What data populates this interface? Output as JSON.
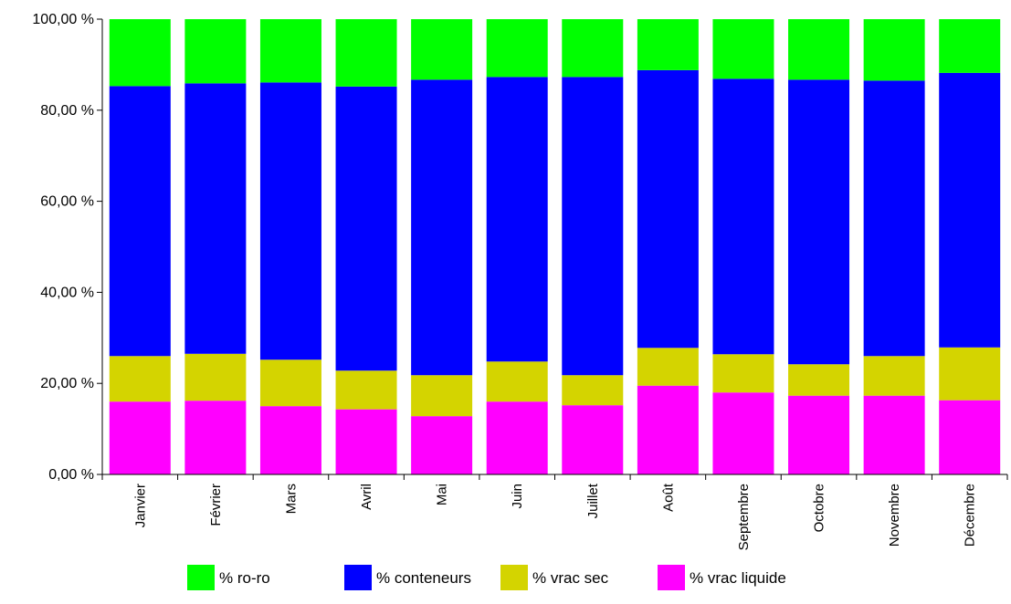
{
  "chart_data": {
    "type": "bar",
    "stacked": true,
    "categories": [
      "Janvier",
      "Février",
      "Mars",
      "Avril",
      "Mai",
      "Juin",
      "Juillet",
      "Août",
      "Septembre",
      "Octobre",
      "Novembre",
      "Décembre"
    ],
    "series": [
      {
        "name": "% vrac liquide",
        "color": "#ff00ff",
        "values": [
          16.0,
          16.2,
          15.0,
          14.3,
          12.8,
          16.0,
          15.2,
          19.5,
          18.0,
          17.3,
          17.3,
          16.3
        ]
      },
      {
        "name": "% vrac sec",
        "color": "#d4d400",
        "values": [
          10.0,
          10.3,
          10.2,
          8.5,
          9.0,
          8.8,
          6.6,
          8.3,
          8.4,
          6.9,
          8.7,
          11.6
        ]
      },
      {
        "name": "% conteneurs",
        "color": "#0000ff",
        "values": [
          59.3,
          59.4,
          60.9,
          62.4,
          64.9,
          62.5,
          65.5,
          61.0,
          60.5,
          62.5,
          60.5,
          60.3
        ]
      },
      {
        "name": "% ro-ro",
        "color": "#00ff00",
        "values": [
          14.7,
          14.1,
          13.9,
          14.8,
          13.3,
          12.7,
          12.7,
          11.2,
          13.1,
          13.3,
          13.5,
          11.8
        ]
      }
    ],
    "y_tick_labels": [
      "0,00 %",
      "20,00 %",
      "40,00 %",
      "60,00 %",
      "80,00 %",
      "100,00 %"
    ],
    "y_ticks": [
      0,
      20,
      40,
      60,
      80,
      100
    ],
    "ylim": [
      0,
      100
    ],
    "grid": false,
    "legend_position": "bottom",
    "legend": [
      {
        "label": "% ro-ro",
        "color": "#00ff00"
      },
      {
        "label": "% conteneurs",
        "color": "#0000ff"
      },
      {
        "label": "% vrac sec",
        "color": "#d4d400"
      },
      {
        "label": "% vrac liquide",
        "color": "#ff00ff"
      }
    ]
  }
}
